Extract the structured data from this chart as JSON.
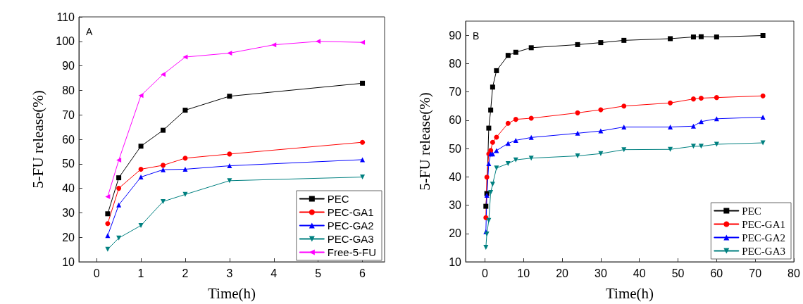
{
  "chart_data": [
    {
      "type": "line",
      "xlabel": "Time(h)",
      "ylabel": "5-FU release(%)",
      "annotations": [
        "A"
      ],
      "xlim": [
        -0.4,
        6.5
      ],
      "xticks": [
        0,
        1,
        2,
        3,
        4,
        5,
        6
      ],
      "ylim": [
        10,
        110
      ],
      "yticks": [
        10,
        20,
        30,
        40,
        50,
        60,
        70,
        80,
        90,
        100,
        110
      ],
      "grid": false,
      "legend": "bottom right",
      "series": [
        {
          "name": "PEC",
          "color": "#000000",
          "marker": "square",
          "x": [
            0.25,
            0.5,
            1,
            1.5,
            2,
            3,
            6
          ],
          "values": [
            29.6,
            44.3,
            57.2,
            63.7,
            71.9,
            77.6,
            82.9
          ]
        },
        {
          "name": "PEC-GA1",
          "color": "#ff0000",
          "marker": "circle",
          "x": [
            0.25,
            0.5,
            1,
            1.5,
            2,
            3,
            6
          ],
          "values": [
            25.6,
            40.0,
            47.8,
            49.4,
            52.3,
            54.0,
            58.8
          ]
        },
        {
          "name": "PEC-GA2",
          "color": "#0000ff",
          "marker": "triangle",
          "x": [
            0.25,
            0.5,
            1,
            1.5,
            2,
            3,
            6
          ],
          "values": [
            20.7,
            33.2,
            44.6,
            47.6,
            47.8,
            49.2,
            51.7
          ]
        },
        {
          "name": "PEC-GA3",
          "color": "#008080",
          "marker": "triangle-down",
          "x": [
            0.25,
            0.5,
            1,
            1.5,
            2,
            3,
            6
          ],
          "values": [
            15.1,
            19.7,
            24.8,
            34.6,
            37.5,
            43.1,
            44.6
          ]
        },
        {
          "name": "Free-5-FU",
          "color": "#ff00ff",
          "marker": "triangle-left",
          "x": [
            0.25,
            0.5,
            1,
            1.5,
            2,
            3,
            4,
            5,
            6
          ],
          "values": [
            36.6,
            51.5,
            77.9,
            86.5,
            93.6,
            95.2,
            98.6,
            100.0,
            99.6
          ]
        }
      ]
    },
    {
      "type": "line",
      "xlabel": "Time(h)",
      "ylabel": "5-FU release(%)",
      "annotations": [
        "B"
      ],
      "xlim": [
        -5,
        80
      ],
      "xticks": [
        0,
        10,
        20,
        30,
        40,
        50,
        60,
        70,
        80
      ],
      "ylim": [
        10,
        95
      ],
      "yticks": [
        10,
        20,
        30,
        40,
        50,
        60,
        70,
        80,
        90
      ],
      "grid": false,
      "legend": "bottom right",
      "series": [
        {
          "name": "PEC",
          "color": "#000000",
          "marker": "square",
          "x": [
            0.25,
            0.5,
            1,
            1.5,
            2,
            3,
            6,
            8,
            12,
            24,
            30,
            36,
            48,
            54,
            56,
            60,
            72
          ],
          "values": [
            29.6,
            34.1,
            57.2,
            63.6,
            71.7,
            77.5,
            82.9,
            84.0,
            85.6,
            86.7,
            87.4,
            88.2,
            88.8,
            89.4,
            89.5,
            89.4,
            89.9
          ]
        },
        {
          "name": "PEC-GA1",
          "color": "#ff0000",
          "marker": "circle",
          "x": [
            0.25,
            0.5,
            1,
            1.5,
            2,
            3,
            6,
            8,
            12,
            24,
            30,
            36,
            48,
            54,
            56,
            60,
            72
          ],
          "values": [
            25.6,
            39.9,
            48.1,
            49.3,
            52.2,
            54.0,
            58.9,
            60.3,
            60.7,
            62.6,
            63.7,
            65.0,
            66.1,
            67.5,
            67.8,
            68.0,
            68.6
          ]
        },
        {
          "name": "PEC-GA2",
          "color": "#0000ff",
          "marker": "triangle",
          "x": [
            0.25,
            0.5,
            1,
            1.5,
            2,
            3,
            6,
            8,
            12,
            24,
            30,
            36,
            48,
            54,
            56,
            60,
            72
          ],
          "values": [
            20.6,
            33.5,
            44.7,
            48.1,
            48.1,
            49.3,
            51.8,
            52.9,
            53.9,
            55.4,
            56.2,
            57.6,
            57.6,
            57.9,
            59.5,
            60.5,
            61.1
          ]
        },
        {
          "name": "PEC-GA3",
          "color": "#008080",
          "marker": "triangle-down",
          "x": [
            0.25,
            0.5,
            1,
            1.5,
            2,
            3,
            6,
            8,
            12,
            24,
            30,
            36,
            48,
            54,
            56,
            60,
            72
          ],
          "values": [
            15.1,
            19.8,
            24.6,
            34.5,
            37.4,
            43.1,
            44.7,
            46.0,
            46.6,
            47.4,
            48.2,
            49.6,
            49.7,
            50.8,
            50.8,
            51.5,
            52.0
          ]
        }
      ]
    }
  ]
}
